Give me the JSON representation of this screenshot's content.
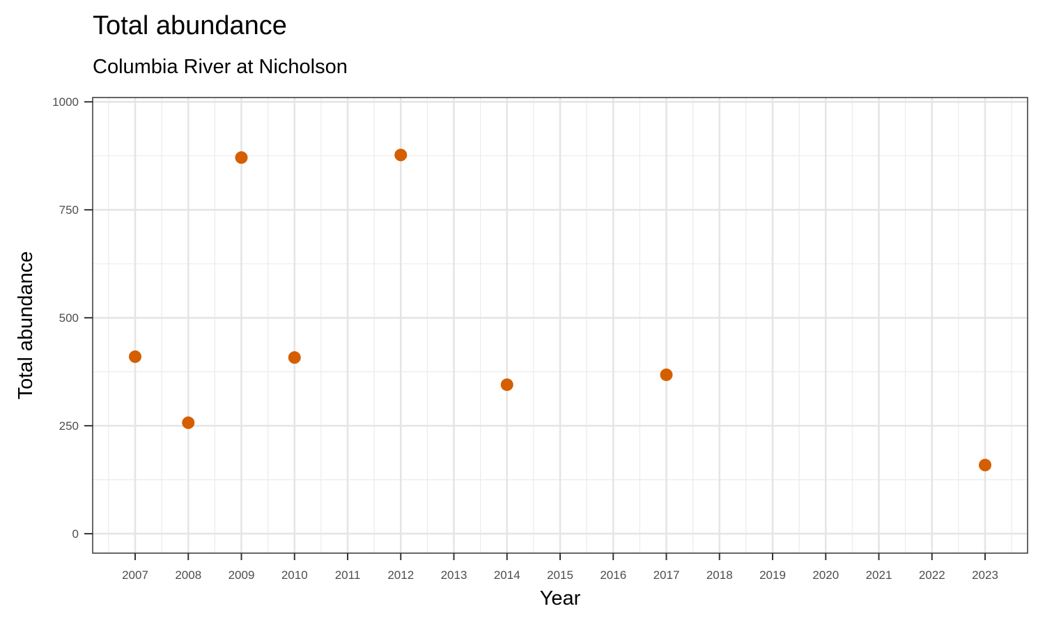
{
  "chart_data": {
    "type": "scatter",
    "title": "Total abundance",
    "subtitle": "Columbia River at Nicholson",
    "xlabel": "Year",
    "ylabel": "Total abundance",
    "x_ticks": [
      "2007",
      "2008",
      "2009",
      "2010",
      "2011",
      "2012",
      "2013",
      "2014",
      "2015",
      "2016",
      "2017",
      "2018",
      "2019",
      "2020",
      "2021",
      "2022",
      "2023"
    ],
    "y_ticks": [
      "0",
      "250",
      "500",
      "750",
      "1000"
    ],
    "xlim": [
      2006.2,
      2023.8
    ],
    "ylim": [
      -45,
      1010
    ],
    "grid": true,
    "legend": "none",
    "point_color": "#D55E00",
    "series": [
      {
        "x": [
          2007,
          2008,
          2009,
          2010,
          2012,
          2014,
          2017,
          2023
        ],
        "y": [
          410,
          257,
          871,
          408,
          877,
          345,
          368,
          159
        ]
      }
    ]
  }
}
